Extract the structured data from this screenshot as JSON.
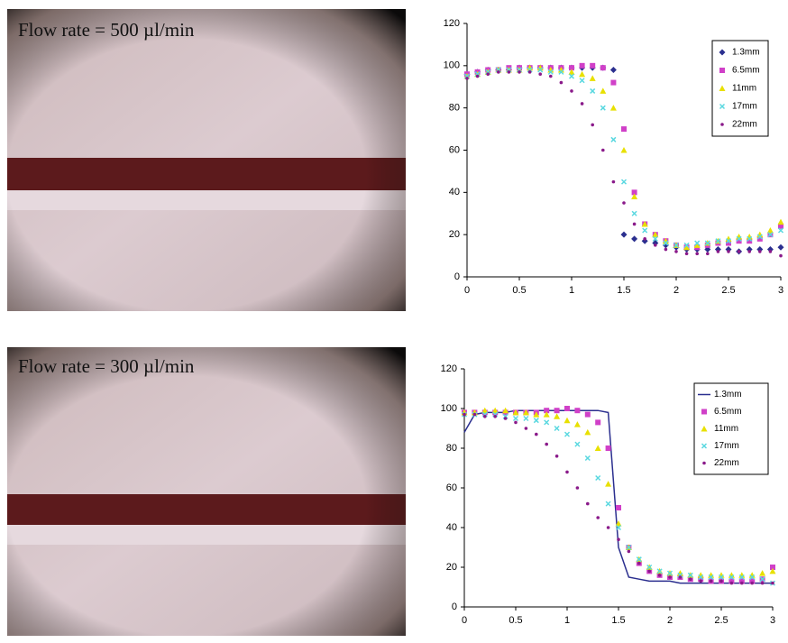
{
  "chart_data": [
    {
      "type": "scatter",
      "title": "Flow rate = 500 µl/min",
      "x": [
        0,
        0.1,
        0.2,
        0.3,
        0.4,
        0.5,
        0.6,
        0.7,
        0.8,
        0.9,
        1,
        1.1,
        1.2,
        1.3,
        1.4,
        1.5,
        1.6,
        1.7,
        1.8,
        1.9,
        2,
        2.1,
        2.2,
        2.3,
        2.4,
        2.5,
        2.6,
        2.7,
        2.8,
        2.9,
        3
      ],
      "xlim": [
        0,
        3
      ],
      "xticks": [
        0,
        0.5,
        1,
        1.5,
        2,
        2.5,
        3
      ],
      "ylim": [
        0,
        120
      ],
      "yticks": [
        0,
        20,
        40,
        60,
        80,
        100,
        120
      ],
      "grid": false,
      "legend": "top-right",
      "series": [
        {
          "name": "1.3mm",
          "color": "#2b2f8f",
          "marker": "diamond",
          "line": false,
          "values": [
            96,
            97,
            98,
            98,
            98,
            99,
            99,
            99,
            99,
            99,
            99,
            99,
            99,
            99,
            98,
            20,
            18,
            17,
            16,
            15,
            14,
            13,
            13,
            13,
            13,
            13,
            12,
            13,
            13,
            13,
            14
          ]
        },
        {
          "name": "6.5mm",
          "color": "#d040c8",
          "marker": "square",
          "line": false,
          "values": [
            96,
            97,
            98,
            98,
            99,
            99,
            99,
            99,
            99,
            99,
            99,
            100,
            100,
            99,
            92,
            70,
            40,
            25,
            20,
            17,
            15,
            14,
            14,
            15,
            16,
            16,
            17,
            17,
            18,
            20,
            24
          ]
        },
        {
          "name": "11mm",
          "color": "#e8e000",
          "marker": "triangle",
          "line": false,
          "values": [
            95,
            96,
            97,
            98,
            98,
            98,
            99,
            99,
            98,
            98,
            97,
            96,
            94,
            88,
            80,
            60,
            38,
            25,
            20,
            17,
            15,
            14,
            15,
            16,
            17,
            18,
            19,
            19,
            20,
            22,
            26
          ]
        },
        {
          "name": "17mm",
          "color": "#5ad8e0",
          "marker": "x",
          "line": false,
          "values": [
            95,
            96,
            97,
            98,
            98,
            98,
            98,
            98,
            97,
            97,
            95,
            93,
            88,
            80,
            65,
            45,
            30,
            22,
            18,
            16,
            15,
            15,
            16,
            16,
            17,
            17,
            18,
            18,
            19,
            20,
            22
          ]
        },
        {
          "name": "22mm",
          "color": "#8a1a8a",
          "marker": "dot",
          "line": false,
          "values": [
            94,
            95,
            96,
            97,
            97,
            97,
            97,
            96,
            95,
            92,
            88,
            82,
            72,
            60,
            45,
            35,
            25,
            18,
            15,
            13,
            12,
            11,
            11,
            11,
            12,
            12,
            12,
            12,
            12,
            12,
            10
          ]
        }
      ]
    },
    {
      "type": "scatter",
      "title": "Flow rate = 300 µl/min",
      "x": [
        0,
        0.1,
        0.2,
        0.3,
        0.4,
        0.5,
        0.6,
        0.7,
        0.8,
        0.9,
        1,
        1.1,
        1.2,
        1.3,
        1.4,
        1.5,
        1.6,
        1.7,
        1.8,
        1.9,
        2,
        2.1,
        2.2,
        2.3,
        2.4,
        2.5,
        2.6,
        2.7,
        2.8,
        2.9,
        3
      ],
      "xlim": [
        0,
        3
      ],
      "xticks": [
        0,
        0.5,
        1,
        1.5,
        2,
        2.5,
        3
      ],
      "ylim": [
        0,
        120
      ],
      "yticks": [
        0,
        20,
        40,
        60,
        80,
        100,
        120
      ],
      "grid": false,
      "legend": "top-right",
      "series": [
        {
          "name": "1.3mm",
          "color": "#2b2f8f",
          "marker": "none",
          "line": true,
          "values": [
            88,
            97,
            98,
            98,
            98,
            99,
            99,
            99,
            99,
            99,
            99,
            99,
            99,
            99,
            98,
            30,
            15,
            14,
            13,
            13,
            13,
            12,
            12,
            12,
            12,
            12,
            12,
            12,
            12,
            12,
            12
          ]
        },
        {
          "name": "6.5mm",
          "color": "#d040c8",
          "marker": "square",
          "line": false,
          "values": [
            98,
            98,
            98,
            98,
            98,
            98,
            98,
            98,
            99,
            99,
            100,
            99,
            97,
            93,
            80,
            50,
            30,
            22,
            18,
            16,
            15,
            15,
            14,
            14,
            13,
            13,
            13,
            13,
            13,
            14,
            20
          ]
        },
        {
          "name": "11mm",
          "color": "#e8e000",
          "marker": "triangle",
          "line": false,
          "values": [
            98,
            98,
            99,
            99,
            99,
            98,
            98,
            97,
            97,
            96,
            94,
            92,
            88,
            80,
            62,
            42,
            30,
            24,
            20,
            18,
            17,
            17,
            16,
            16,
            16,
            16,
            16,
            16,
            16,
            17,
            18
          ]
        },
        {
          "name": "17mm",
          "color": "#5ad8e0",
          "marker": "x",
          "line": false,
          "values": [
            97,
            97,
            97,
            97,
            96,
            95,
            95,
            94,
            93,
            90,
            87,
            82,
            75,
            65,
            52,
            40,
            30,
            24,
            20,
            18,
            17,
            16,
            16,
            15,
            15,
            15,
            15,
            15,
            15,
            14,
            12
          ]
        },
        {
          "name": "22mm",
          "color": "#8a1a8a",
          "marker": "dot",
          "line": false,
          "values": [
            97,
            97,
            96,
            96,
            95,
            93,
            90,
            87,
            82,
            76,
            68,
            60,
            52,
            45,
            40,
            34,
            28,
            22,
            18,
            16,
            15,
            15,
            14,
            13,
            13,
            13,
            12,
            12,
            12,
            12,
            12
          ]
        }
      ]
    }
  ]
}
